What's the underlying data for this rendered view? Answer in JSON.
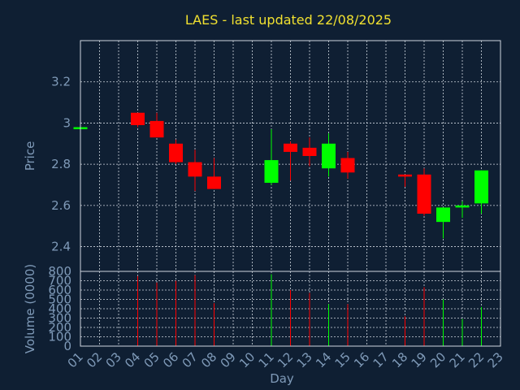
{
  "chart_data": {
    "type": "candlestick",
    "title": "LAES - last updated 22/08/2025",
    "xlabel": "Day",
    "ylabel_price": "Price",
    "ylabel_volume": "Volume (0000)",
    "x_ticks": [
      "01",
      "02",
      "03",
      "04",
      "05",
      "06",
      "07",
      "08",
      "09",
      "10",
      "11",
      "12",
      "13",
      "14",
      "15",
      "16",
      "17",
      "18",
      "19",
      "20",
      "21",
      "22",
      "23"
    ],
    "price_ticks": [
      "2.4",
      "2.6",
      "2.8",
      "3",
      "3.2"
    ],
    "volume_ticks": [
      "0",
      "100",
      "200",
      "300",
      "400",
      "500",
      "600",
      "700",
      "800"
    ],
    "price_range": [
      2.28,
      3.4
    ],
    "volume_range": [
      0,
      800
    ],
    "grid": true,
    "colors": {
      "up": "#00ff00",
      "down": "#ff0000",
      "title": "#f0e030",
      "axis_text": "#7f9ab8",
      "grid": "#cfd6df",
      "background": "#0f1f33"
    },
    "candles": [
      {
        "day": 1,
        "open": 2.97,
        "close": 2.98,
        "high": 2.98,
        "low": 2.97,
        "volume": 0,
        "dir": "up"
      },
      {
        "day": 4,
        "open": 3.05,
        "close": 2.99,
        "high": 3.05,
        "low": 2.98,
        "volume": 750,
        "dir": "down"
      },
      {
        "day": 5,
        "open": 3.01,
        "close": 2.93,
        "high": 3.05,
        "low": 2.93,
        "volume": 680,
        "dir": "down"
      },
      {
        "day": 6,
        "open": 2.9,
        "close": 2.81,
        "high": 2.92,
        "low": 2.8,
        "volume": 700,
        "dir": "down"
      },
      {
        "day": 7,
        "open": 2.81,
        "close": 2.74,
        "high": 2.87,
        "low": 2.67,
        "volume": 760,
        "dir": "down"
      },
      {
        "day": 8,
        "open": 2.74,
        "close": 2.68,
        "high": 2.83,
        "low": 2.68,
        "volume": 460,
        "dir": "down"
      },
      {
        "day": 11,
        "open": 2.71,
        "close": 2.82,
        "high": 2.97,
        "low": 2.7,
        "volume": 770,
        "dir": "up"
      },
      {
        "day": 12,
        "open": 2.9,
        "close": 2.86,
        "high": 2.91,
        "low": 2.72,
        "volume": 600,
        "dir": "down"
      },
      {
        "day": 13,
        "open": 2.88,
        "close": 2.84,
        "high": 2.93,
        "low": 2.79,
        "volume": 570,
        "dir": "down"
      },
      {
        "day": 14,
        "open": 2.78,
        "close": 2.9,
        "high": 2.95,
        "low": 2.74,
        "volume": 450,
        "dir": "up"
      },
      {
        "day": 15,
        "open": 2.83,
        "close": 2.76,
        "high": 2.86,
        "low": 2.73,
        "volume": 450,
        "dir": "down"
      },
      {
        "day": 18,
        "open": 2.75,
        "close": 2.74,
        "high": 2.75,
        "low": 2.69,
        "volume": 320,
        "dir": "down"
      },
      {
        "day": 19,
        "open": 2.75,
        "close": 2.56,
        "high": 2.78,
        "low": 2.55,
        "volume": 630,
        "dir": "down"
      },
      {
        "day": 20,
        "open": 2.52,
        "close": 2.59,
        "high": 2.59,
        "low": 2.44,
        "volume": 500,
        "dir": "up"
      },
      {
        "day": 21,
        "open": 2.59,
        "close": 2.6,
        "high": 2.62,
        "low": 2.54,
        "volume": 290,
        "dir": "up"
      },
      {
        "day": 22,
        "open": 2.61,
        "close": 2.77,
        "high": 2.77,
        "low": 2.56,
        "volume": 420,
        "dir": "up"
      }
    ]
  }
}
